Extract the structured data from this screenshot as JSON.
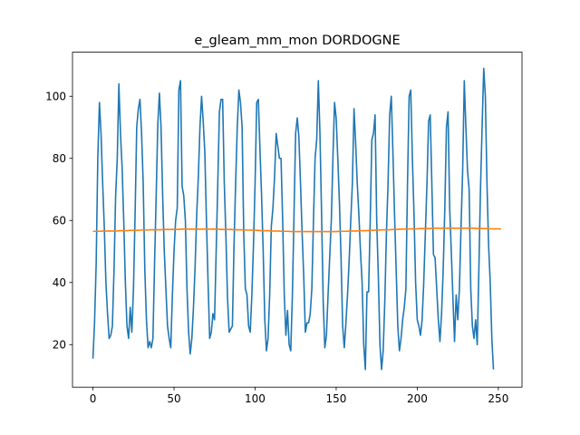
{
  "chart_data": {
    "type": "line",
    "title": "e_gleam_mm_mon DORDOGNE",
    "xlabel": "",
    "ylabel": "",
    "xlim": [
      -12.6,
      264.6
    ],
    "ylim": [
      6.3,
      114.2
    ],
    "xticks": [
      0,
      50,
      100,
      150,
      200,
      250
    ],
    "yticks": [
      20,
      40,
      60,
      80,
      100
    ],
    "grid": false,
    "colors": {
      "series_1": "#1f77b4",
      "series_2": "#ff7f0e"
    },
    "series": [
      {
        "values": [
          15.5,
          27,
          46,
          80,
          98,
          88,
          72,
          58,
          40,
          30,
          22,
          23,
          26,
          44,
          68,
          80,
          104,
          88,
          77,
          60,
          40,
          26,
          22,
          32,
          24,
          38,
          62,
          90,
          96,
          99,
          88,
          72,
          44,
          28,
          19,
          21,
          19,
          22,
          46,
          68,
          91,
          101,
          90,
          68,
          50,
          38,
          26,
          22,
          19,
          36,
          50,
          60,
          64,
          102,
          105,
          71,
          68,
          60,
          38,
          24,
          17,
          22,
          32,
          45,
          62,
          74,
          90,
          100,
          92,
          82,
          60,
          40,
          22,
          24,
          30,
          28,
          50,
          72,
          95,
          99,
          99,
          72,
          55,
          35,
          24,
          25,
          26,
          52,
          72,
          90,
          102,
          98,
          90,
          56,
          38,
          36,
          26,
          24,
          36,
          52,
          72,
          98,
          99,
          83,
          68,
          50,
          28,
          18,
          22,
          36,
          58,
          64,
          74,
          88,
          84,
          80,
          80,
          60,
          36,
          23,
          31,
          20,
          18,
          36,
          62,
          88,
          93,
          87,
          72,
          56,
          42,
          24,
          27,
          27,
          30,
          38,
          60,
          80,
          86,
          105,
          88,
          62,
          34,
          19,
          23,
          36,
          48,
          60,
          80,
          98,
          93,
          80,
          66,
          48,
          26,
          19,
          27,
          36,
          47,
          60,
          72,
          96,
          85,
          72,
          62,
          50,
          40,
          20,
          12,
          37,
          37,
          60,
          86,
          88,
          94,
          60,
          42,
          20,
          12,
          18,
          34,
          56,
          72,
          94,
          100,
          82,
          62,
          44,
          26,
          18,
          22,
          28,
          32,
          38,
          72,
          100,
          102,
          80,
          62,
          40,
          28,
          26,
          23,
          28,
          40,
          56,
          72,
          92,
          94,
          72,
          49,
          48,
          38,
          28,
          21,
          30,
          44,
          64,
          90,
          95,
          64,
          50,
          35,
          21,
          36,
          28,
          38,
          58,
          76,
          105,
          90,
          76,
          70,
          38,
          26,
          22,
          28,
          20,
          44,
          70,
          90,
          109,
          100,
          72,
          52,
          40,
          22,
          12
        ],
        "x_start": 0
      },
      {
        "values": [
          56.5,
          56.5,
          56.5,
          56.6,
          56.6,
          56.6,
          56.6,
          56.6,
          56.7,
          56.7,
          56.7,
          56.8,
          56.8,
          56.8,
          56.9,
          56.9,
          56.9,
          57,
          57,
          57,
          57,
          57.1,
          57.1,
          57.1,
          57.1,
          57.1,
          57.2,
          57.2,
          57.2,
          57.2,
          57.2,
          57.2,
          57.2,
          57.2,
          57.2,
          57.2,
          57.2,
          57.2,
          57.1,
          57.1,
          57.1,
          57.1,
          57,
          57,
          57,
          56.9,
          56.9,
          56.9,
          56.8,
          56.8,
          56.7,
          56.7,
          56.7,
          56.6,
          56.6,
          56.6,
          56.5,
          56.5,
          56.5,
          56.4,
          56.4,
          56.4,
          56.4,
          56.4,
          56.4,
          56.4,
          56.4,
          56.4,
          56.4,
          56.4,
          56.4,
          56.4,
          56.4,
          56.5,
          56.5,
          56.5,
          56.6,
          56.6,
          56.6,
          56.7,
          56.7,
          56.7,
          56.8,
          56.8,
          56.9,
          56.9,
          57,
          57,
          57,
          57.1,
          57.1,
          57.2,
          57.2,
          57.2,
          57.3,
          57.3,
          57.3,
          57.4,
          57.4,
          57.4,
          57.4,
          57.5,
          57.5,
          57.5,
          57.5,
          57.5,
          57.5,
          57.5,
          57.5,
          57.5,
          57.5,
          57.5,
          57.5,
          57.5,
          57.4,
          57.4,
          57.4,
          57.4,
          57.3,
          57.3,
          57.3,
          57.2
        ],
        "x_step": 2.08
      }
    ]
  }
}
